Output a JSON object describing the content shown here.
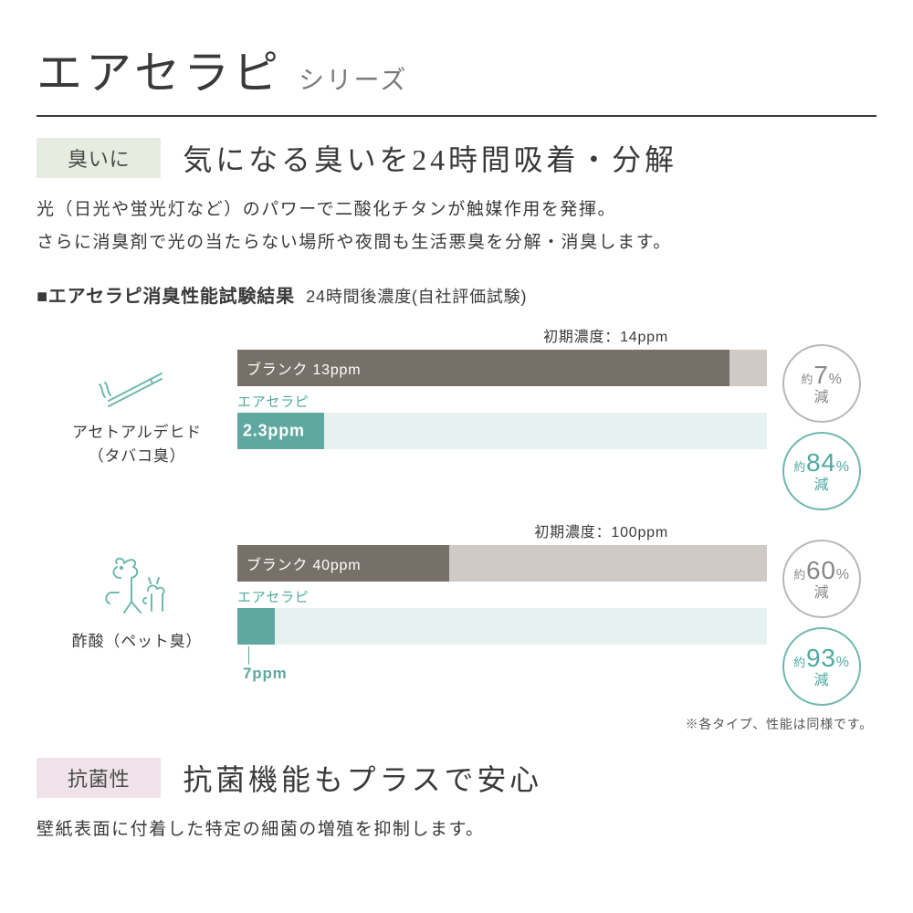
{
  "title": {
    "main": "エアセラピ",
    "sub": "シリーズ"
  },
  "feature1": {
    "tag": "臭いに",
    "headline": "気になる臭いを24時間吸着・分解",
    "body1": "光（日光や蛍光灯など）のパワーで二酸化チタンが触媒作用を発揮。",
    "body2": "さらに消臭剤で光の当たらない場所や夜間も生活悪臭を分解・消臭します。",
    "tag_bg": "#e7ece0"
  },
  "test": {
    "title": "■エアセラピ消臭性能試験結果",
    "subtitle": "24時間後濃度(自社評価試験)",
    "product_name": "エアセラピ",
    "blank_name": "ブランク",
    "colors": {
      "blank_bar": "#777069",
      "blank_bg": "#cfcac5",
      "product_bar": "#5fa89f",
      "product_bg": "#e6f1f0",
      "accent": "#4faaa0",
      "circle_gray": "#b8b8b8"
    },
    "rows": [
      {
        "icon": "cigarette",
        "label_line1": "アセトアルデヒド",
        "label_line2": "（タバコ臭）",
        "init_label": "初期濃度：14ppm",
        "init_value": 14,
        "blank_value": 13,
        "blank_label": "ブランク 13ppm",
        "product_value": 2.3,
        "product_label": "2.3ppm",
        "product_label_inside": true,
        "blank_reduction": "7",
        "product_reduction": "84"
      },
      {
        "icon": "pet",
        "label_line1": "酢酸（ペット臭）",
        "label_line2": "",
        "init_label": "初期濃度：100ppm",
        "init_value": 100,
        "blank_value": 40,
        "blank_label": "ブランク 40ppm",
        "product_value": 7,
        "product_label": "7ppm",
        "product_label_inside": false,
        "blank_reduction": "60",
        "product_reduction": "93"
      }
    ],
    "footnote": "※各タイプ、性能は同様です。"
  },
  "feature2": {
    "tag": "抗菌性",
    "headline": "抗菌機能もプラスで安心",
    "body": "壁紙表面に付着した特定の細菌の増殖を抑制します。",
    "tag_bg": "#efe3e9"
  },
  "labels": {
    "approx": "約",
    "reduction": "減",
    "percent": "%"
  }
}
